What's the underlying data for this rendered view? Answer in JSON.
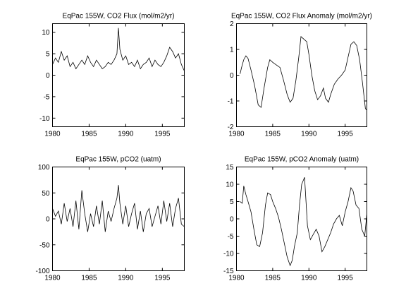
{
  "figure": {
    "background": "#ffffff"
  },
  "chart_data": [
    {
      "type": "line",
      "title": "EqPac 155W, CO2 Flux (mol/m2/yr)",
      "xlim": [
        1980,
        1998
      ],
      "ylim": [
        -12,
        12
      ],
      "xticks": [
        1980,
        1985,
        1990,
        1995
      ],
      "yticks": [
        -10,
        -5,
        0,
        5,
        10
      ],
      "ytick_labels": [
        "-10",
        "-5",
        "0",
        "5",
        "10"
      ],
      "grid": false,
      "color": "#000000",
      "x": [
        1980.0,
        1980.4,
        1980.8,
        1981.2,
        1981.6,
        1982.0,
        1982.4,
        1982.8,
        1983.2,
        1983.6,
        1984.0,
        1984.4,
        1984.8,
        1985.2,
        1985.6,
        1986.0,
        1986.4,
        1986.8,
        1987.2,
        1987.6,
        1988.0,
        1988.4,
        1988.8,
        1989.0,
        1989.2,
        1989.6,
        1990.0,
        1990.4,
        1990.8,
        1991.2,
        1991.6,
        1992.0,
        1992.4,
        1992.8,
        1993.2,
        1993.6,
        1994.0,
        1994.4,
        1994.8,
        1995.2,
        1995.6,
        1996.0,
        1996.4,
        1996.8,
        1997.2,
        1997.6,
        1998.0
      ],
      "y": [
        2.5,
        4.0,
        3.0,
        5.5,
        3.5,
        4.5,
        2.0,
        3.0,
        1.5,
        2.5,
        3.5,
        2.5,
        4.5,
        3.0,
        2.0,
        3.5,
        2.5,
        1.5,
        2.0,
        3.0,
        2.5,
        3.5,
        5.0,
        11.0,
        6.0,
        3.5,
        4.5,
        2.5,
        3.0,
        2.0,
        3.5,
        1.5,
        2.5,
        3.0,
        4.0,
        2.0,
        3.5,
        2.5,
        2.0,
        3.0,
        4.5,
        6.5,
        5.5,
        4.0,
        5.0,
        2.5,
        1.0
      ]
    },
    {
      "type": "line",
      "title": "EqPac 155W, CO2 Flux Anomaly (mol/m2/yr)",
      "xlim": [
        1980,
        1998
      ],
      "ylim": [
        -2,
        2
      ],
      "xticks": [
        1980,
        1985,
        1990,
        1995
      ],
      "yticks": [
        -2,
        -1,
        0,
        1,
        2
      ],
      "ytick_labels": [
        "-2",
        "-1",
        "0",
        "1",
        "2"
      ],
      "grid": false,
      "color": "#000000",
      "x": [
        1980.5,
        1980.7,
        1981.0,
        1981.3,
        1981.6,
        1982.0,
        1982.5,
        1983.0,
        1983.4,
        1983.8,
        1984.3,
        1984.6,
        1985.0,
        1985.5,
        1986.0,
        1986.5,
        1987.0,
        1987.4,
        1987.8,
        1988.2,
        1988.6,
        1988.9,
        1989.3,
        1989.7,
        1990.0,
        1990.4,
        1990.8,
        1991.2,
        1991.6,
        1992.0,
        1992.3,
        1992.7,
        1993.0,
        1993.5,
        1994.0,
        1994.5,
        1995.0,
        1995.4,
        1995.8,
        1996.2,
        1996.6,
        1997.0,
        1997.4,
        1997.8,
        1998.0
      ],
      "y": [
        0.05,
        0.3,
        0.6,
        0.75,
        0.65,
        0.2,
        -0.4,
        -1.15,
        -1.25,
        -0.5,
        0.3,
        0.6,
        0.5,
        0.4,
        0.3,
        -0.2,
        -0.75,
        -1.05,
        -0.9,
        -0.2,
        0.7,
        1.5,
        1.4,
        1.3,
        0.8,
        0.0,
        -0.6,
        -0.95,
        -0.8,
        -0.5,
        -0.9,
        -1.05,
        -0.75,
        -0.35,
        -0.15,
        0.0,
        0.2,
        0.7,
        1.2,
        1.3,
        1.15,
        0.6,
        -0.3,
        -1.3,
        -1.35
      ]
    },
    {
      "type": "line",
      "title": "EqPac 155W, pCO2 (uatm)",
      "xlim": [
        1980,
        1998
      ],
      "ylim": [
        -100,
        100
      ],
      "xticks": [
        1980,
        1985,
        1990,
        1995
      ],
      "yticks": [
        -100,
        -50,
        0,
        50,
        100
      ],
      "ytick_labels": [
        "-100",
        "-50",
        "0",
        "50",
        "100"
      ],
      "grid": false,
      "color": "#000000",
      "x": [
        1980.0,
        1980.4,
        1980.8,
        1981.2,
        1981.6,
        1982.0,
        1982.4,
        1982.8,
        1983.2,
        1983.6,
        1984.0,
        1984.4,
        1984.8,
        1985.2,
        1985.6,
        1986.0,
        1986.4,
        1986.8,
        1987.2,
        1987.6,
        1988.0,
        1988.4,
        1988.8,
        1989.0,
        1989.2,
        1989.6,
        1990.0,
        1990.4,
        1990.8,
        1991.2,
        1991.6,
        1992.0,
        1992.4,
        1992.8,
        1993.2,
        1993.6,
        1994.0,
        1994.4,
        1994.8,
        1995.2,
        1995.6,
        1996.0,
        1996.4,
        1996.8,
        1997.2,
        1997.6,
        1998.0
      ],
      "y": [
        20,
        5,
        15,
        -10,
        30,
        -5,
        20,
        -15,
        35,
        -20,
        55,
        10,
        -25,
        10,
        -15,
        25,
        -10,
        35,
        -25,
        15,
        -5,
        20,
        40,
        65,
        30,
        -10,
        25,
        -15,
        10,
        30,
        -20,
        15,
        -25,
        10,
        20,
        -15,
        5,
        25,
        -10,
        35,
        -5,
        30,
        -15,
        20,
        40,
        -10,
        -15
      ]
    },
    {
      "type": "line",
      "title": "EqPac 155W, pCO2 Anomaly (uatm)",
      "xlim": [
        1980,
        1998
      ],
      "ylim": [
        -15,
        15
      ],
      "xticks": [
        1980,
        1985,
        1990,
        1995
      ],
      "yticks": [
        -15,
        -10,
        -5,
        0,
        5,
        10,
        15
      ],
      "ytick_labels": [
        "-15",
        "-10",
        "-5",
        "0",
        "5",
        "10",
        "15"
      ],
      "grid": false,
      "color": "#000000",
      "x": [
        1980.5,
        1980.8,
        1981.0,
        1981.3,
        1981.6,
        1982.0,
        1982.4,
        1982.8,
        1983.2,
        1983.6,
        1984.0,
        1984.3,
        1984.7,
        1985.0,
        1985.4,
        1985.8,
        1986.2,
        1986.6,
        1987.0,
        1987.4,
        1987.7,
        1988.0,
        1988.4,
        1988.7,
        1989.0,
        1989.4,
        1989.8,
        1990.2,
        1990.6,
        1991.0,
        1991.4,
        1991.8,
        1992.2,
        1992.6,
        1993.0,
        1993.4,
        1993.8,
        1994.2,
        1994.6,
        1995.0,
        1995.4,
        1995.8,
        1996.1,
        1996.5,
        1996.9,
        1997.3,
        1997.7,
        1998.0
      ],
      "y": [
        5,
        4.5,
        9.5,
        7,
        5,
        2,
        -3,
        -7.5,
        -8,
        -4,
        4,
        7.5,
        7,
        5,
        3,
        0.5,
        -3,
        -7,
        -11,
        -13.5,
        -12,
        -8,
        -4,
        4,
        10,
        12,
        -2,
        -6,
        -4.5,
        -3,
        -5,
        -9.5,
        -8,
        -6,
        -4,
        -1.5,
        0,
        1,
        -2,
        2,
        5,
        9,
        8,
        4,
        3,
        -3,
        -5,
        1.5
      ]
    }
  ]
}
